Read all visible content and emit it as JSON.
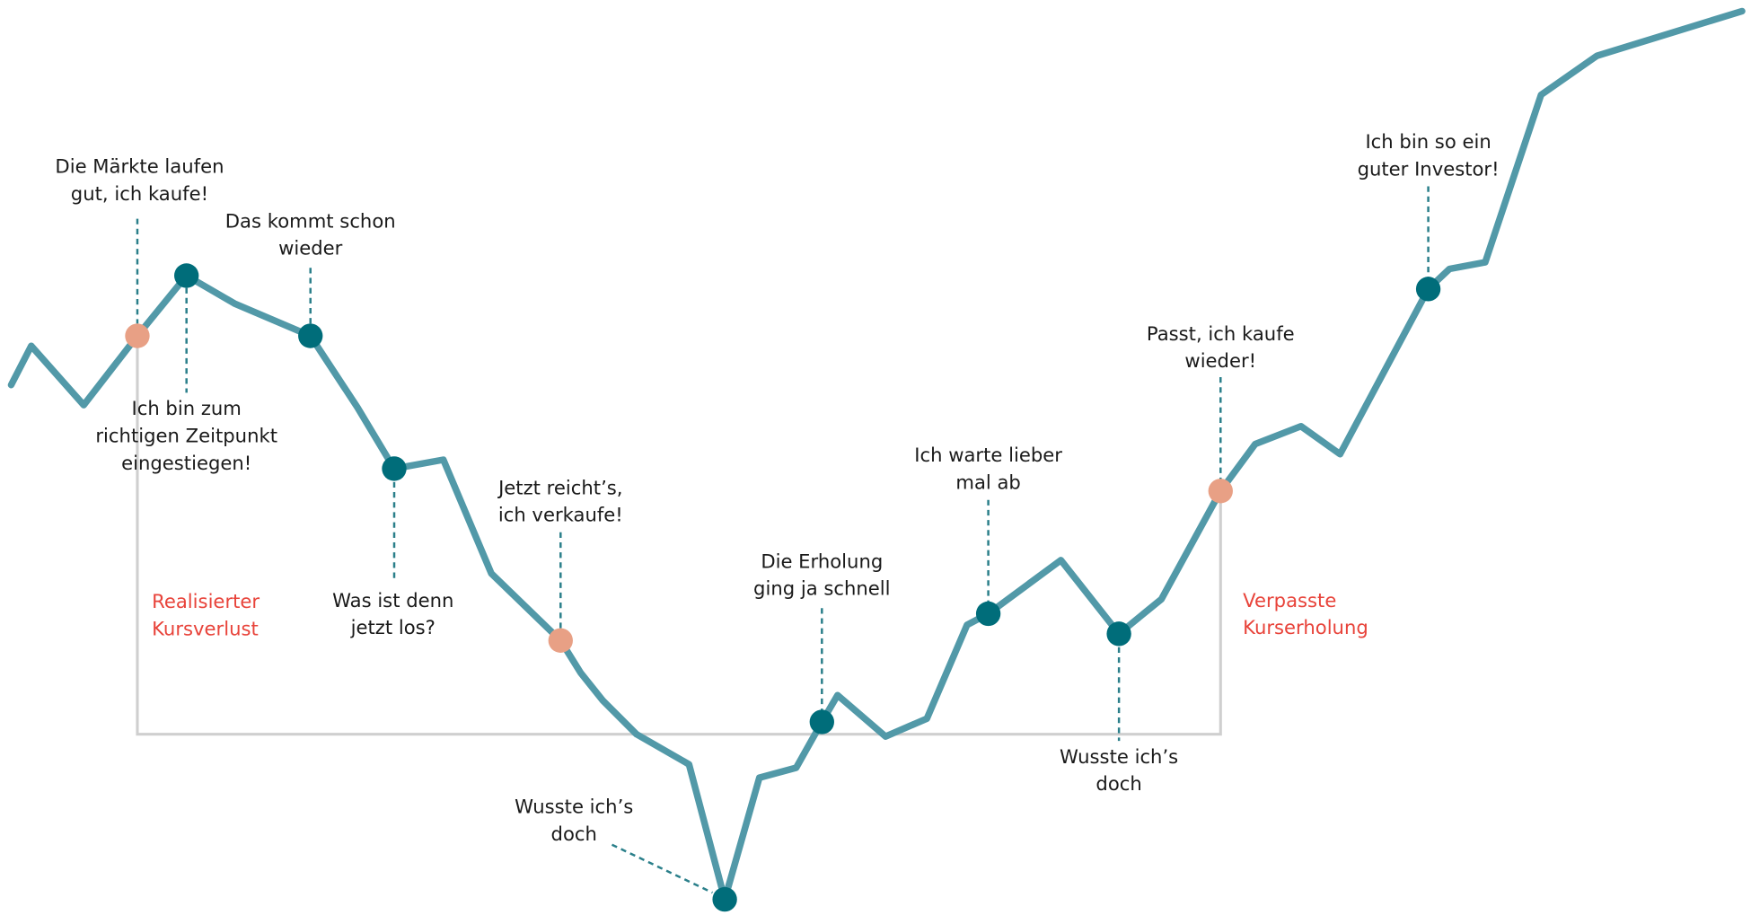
{
  "annotations": [
    {
      "lines": [
        "Die Märkte laufen",
        "gut, ich kaufe!"
      ]
    },
    {
      "lines": [
        "Das kommt schon",
        "wieder"
      ]
    },
    {
      "lines": [
        "Ich bin zum",
        "richtigen Zeitpunkt",
        "eingestiegen!"
      ]
    },
    {
      "lines": [
        "Was ist denn",
        "jetzt los?"
      ]
    },
    {
      "lines": [
        "Jetzt reicht’s,",
        "ich verkaufe!"
      ]
    },
    {
      "lines": [
        "Wusste ich’s",
        "doch"
      ]
    },
    {
      "lines": [
        "Die Erholung",
        "ging ja schnell"
      ]
    },
    {
      "lines": [
        "Ich warte lieber",
        "mal ab"
      ]
    },
    {
      "lines": [
        "Wusste ich’s",
        "doch"
      ]
    },
    {
      "lines": [
        "Passt, ich kaufe",
        "wieder!"
      ]
    },
    {
      "lines": [
        "Ich bin so ein",
        "guter Investor!"
      ]
    }
  ],
  "zones": [
    {
      "lines": [
        "Realisierter",
        "Kursverlust"
      ]
    },
    {
      "lines": [
        "Verpasste",
        "Kurserholung"
      ]
    }
  ]
}
